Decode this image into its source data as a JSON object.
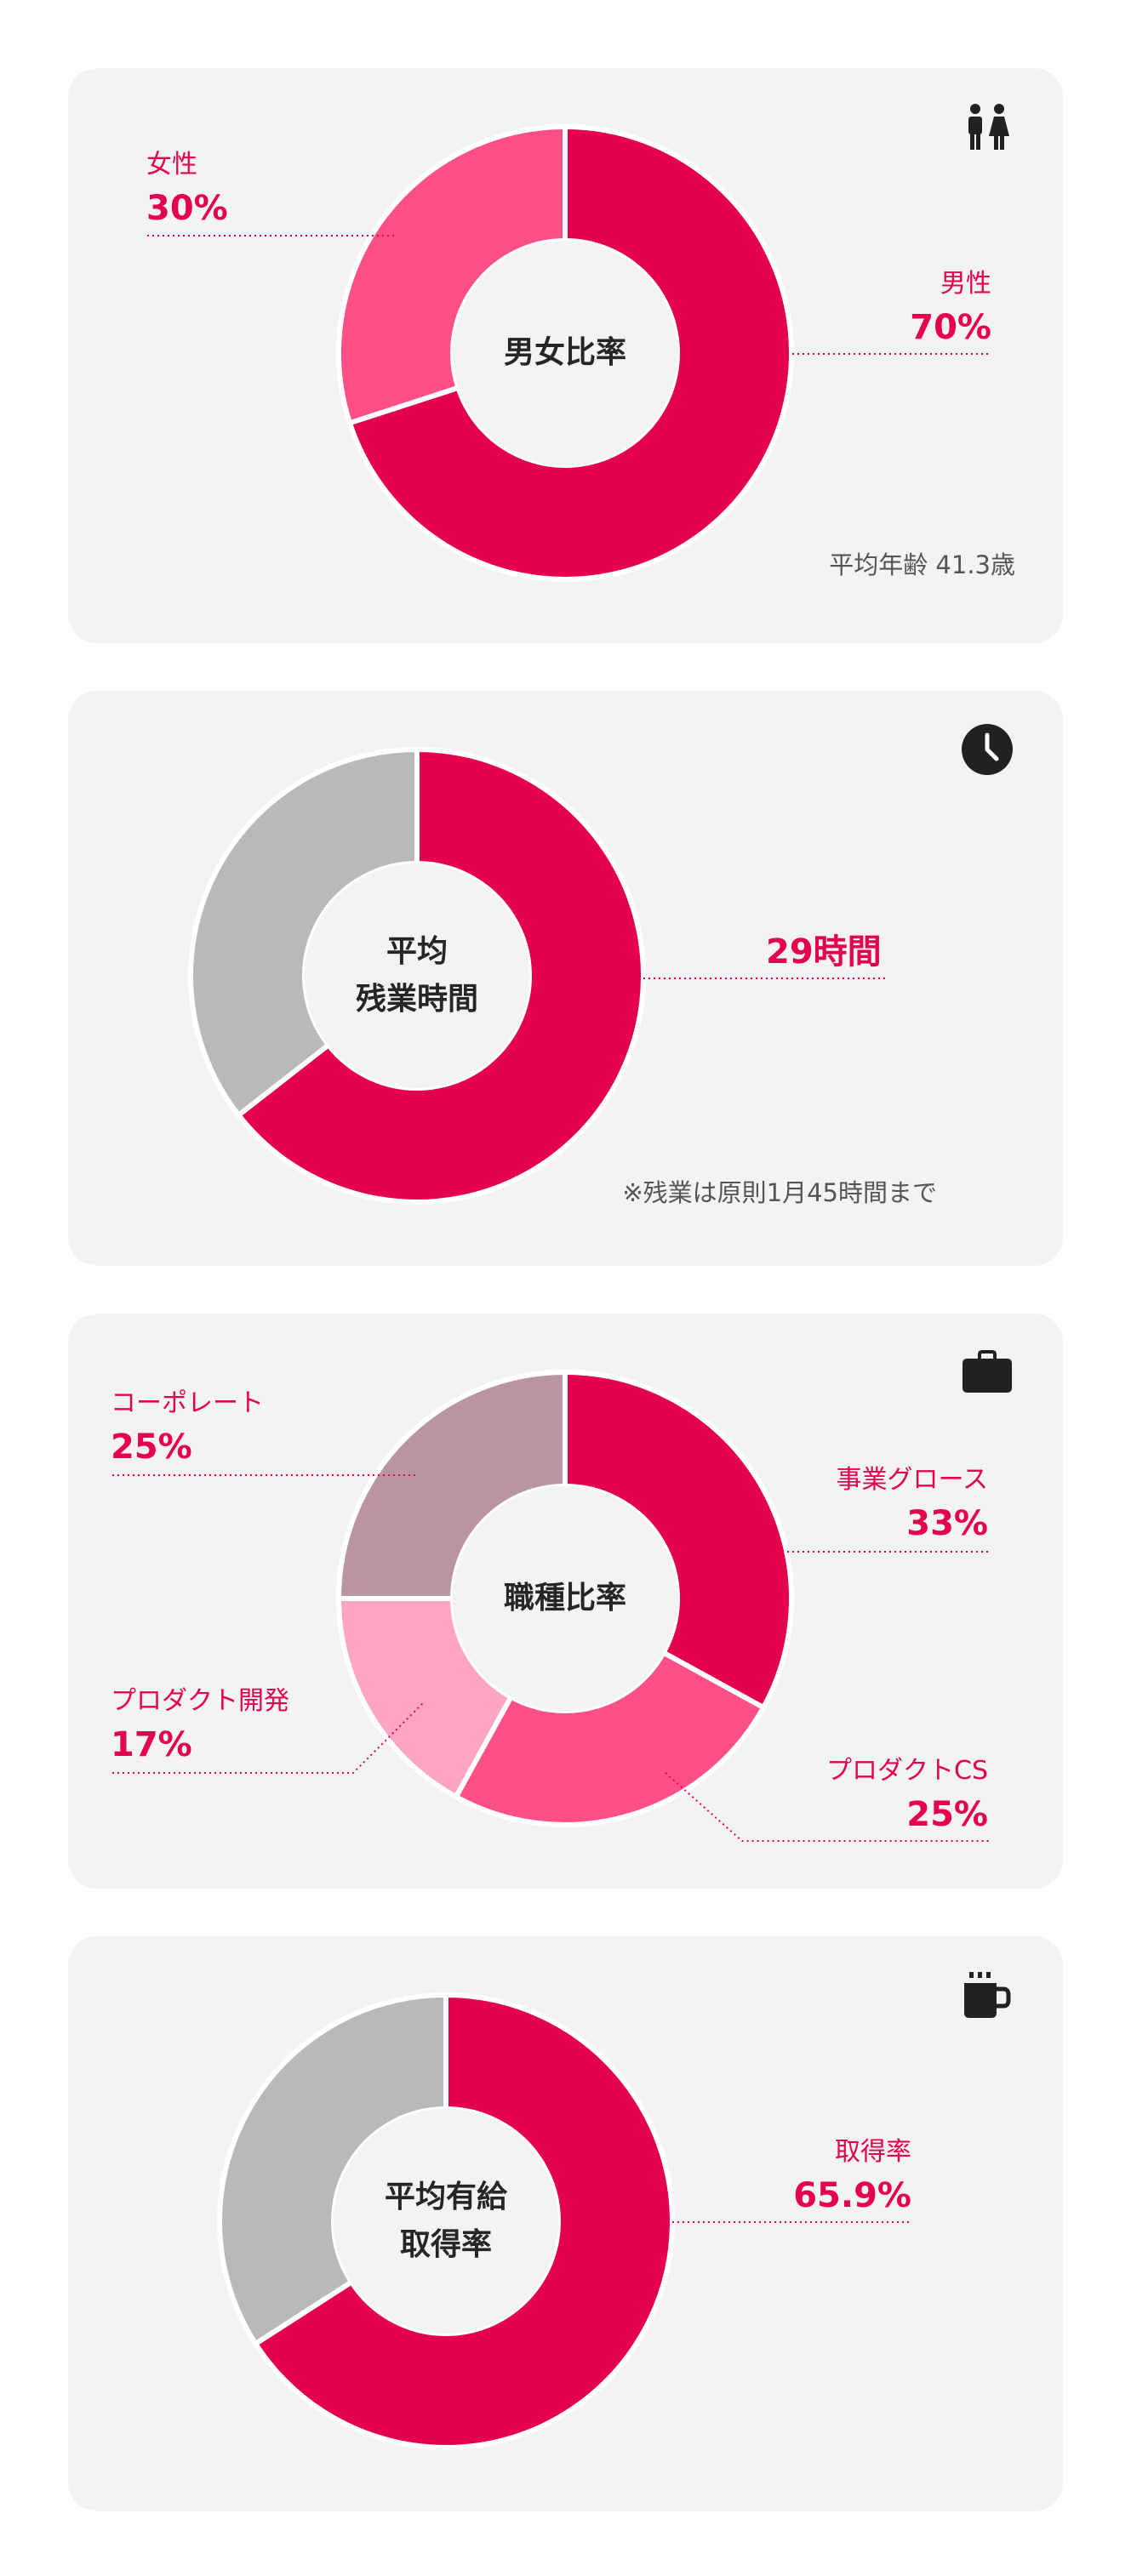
{
  "colors": {
    "primary": "#e4004f",
    "pink": "#ff4f87",
    "light_pink": "#ffa5c3",
    "mauve": "#b9969f",
    "gray": "#b9b9b9",
    "card_bg": "#f4f3f3"
  },
  "icons": [
    "restroom-icon",
    "clock-icon",
    "briefcase-icon",
    "coffee-mug-icon"
  ],
  "gender_card": {
    "title": "男女比率",
    "note": "平均年齢 41.3歳",
    "female_label": "女性",
    "female_pct": "30%",
    "male_label": "男性",
    "male_pct": "70%"
  },
  "overtime_card": {
    "title_line1": "平均",
    "title_line2": "残業時間",
    "value": "29時間",
    "note": "※残業は原則1月45時間まで"
  },
  "jobtype_card": {
    "title": "職種比率",
    "corporate_label": "コーポレート",
    "corporate_pct": "25%",
    "growth_label": "事業グロース",
    "growth_pct": "33%",
    "dev_label": "プロダクト開発",
    "dev_pct": "17%",
    "cs_label": "プロダクトCS",
    "cs_pct": "25%"
  },
  "leave_card": {
    "title_line1": "平均有給",
    "title_line2": "取得率",
    "label": "取得率",
    "value": "65.9%"
  },
  "chart_data": [
    {
      "type": "pie",
      "title": "男女比率",
      "categories": [
        "男性",
        "女性"
      ],
      "values": [
        70,
        30
      ],
      "colors": [
        "#e4004f",
        "#ff4f87"
      ]
    },
    {
      "type": "pie",
      "title": "平均残業時間",
      "categories": [
        "29時間",
        ""
      ],
      "values": [
        29,
        16
      ],
      "colors": [
        "#e4004f",
        "#b9b9b9"
      ]
    },
    {
      "type": "pie",
      "title": "職種比率",
      "categories": [
        "事業グロース",
        "プロダクトCS",
        "プロダクト開発",
        "コーポレート"
      ],
      "values": [
        33,
        25,
        17,
        25
      ],
      "colors": [
        "#e4004f",
        "#ff4f87",
        "#ffa5c3",
        "#b9969f"
      ]
    },
    {
      "type": "pie",
      "title": "平均有給取得率",
      "categories": [
        "取得率",
        ""
      ],
      "values": [
        65.9,
        34.1
      ],
      "colors": [
        "#e4004f",
        "#b9b9b9"
      ]
    }
  ]
}
